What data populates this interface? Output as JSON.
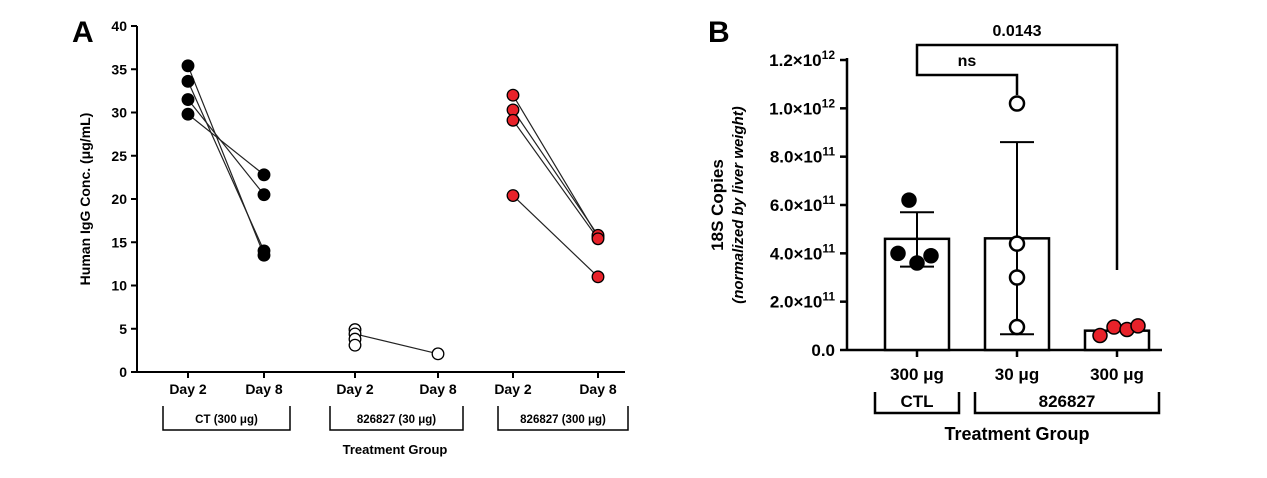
{
  "panel_a": {
    "letter": "A",
    "ylabel": "Human IgG Conc. (μg/mL)",
    "xlabel": "Treatment Group",
    "ylim": [
      0,
      40
    ],
    "yticks": [
      "0",
      "5",
      "10",
      "15",
      "20",
      "25",
      "30",
      "35",
      "40"
    ],
    "groups": [
      {
        "label": "CT (300 μg)",
        "days": [
          "Day 2",
          "Day 8"
        ],
        "marker": "filled",
        "color": "#000000",
        "pairs": [
          [
            35.4,
            13.5
          ],
          [
            33.6,
            14.0
          ],
          [
            31.5,
            20.5
          ],
          [
            29.8,
            22.8
          ]
        ]
      },
      {
        "label": "826827 (30 μg)",
        "days": [
          "Day 2",
          "Day 8"
        ],
        "marker": "open",
        "color": "#000000",
        "day2_points": [
          4.9,
          4.4,
          3.8,
          3.1
        ],
        "mean_line": [
          4.4,
          2.1
        ],
        "day8_points": [
          2.1
        ]
      },
      {
        "label": "826827 (300 μg)",
        "days": [
          "Day 2",
          "Day 8"
        ],
        "marker": "filled",
        "color": "#e8222a",
        "pairs": [
          [
            32.0,
            15.6
          ],
          [
            30.3,
            15.8
          ],
          [
            29.1,
            15.4
          ],
          [
            20.4,
            11.0
          ]
        ]
      }
    ]
  },
  "panel_b": {
    "letter": "B",
    "ylabel": "18S Copies",
    "ylabel_sub": "(normalized by liver weight)",
    "xlabel": "Treatment Group",
    "ylim": [
      0,
      1200000000000.0
    ],
    "yticks": [
      {
        "mant": "0.0",
        "exp": ""
      },
      {
        "mant": "2.0×10",
        "exp": "11"
      },
      {
        "mant": "4.0×10",
        "exp": "11"
      },
      {
        "mant": "6.0×10",
        "exp": "11"
      },
      {
        "mant": "8.0×10",
        "exp": "11"
      },
      {
        "mant": "1.0×10",
        "exp": "12"
      },
      {
        "mant": "1.2×10",
        "exp": "12"
      }
    ],
    "bars": [
      {
        "label": "300 μg",
        "mean": 460000000000.0,
        "sd_low": 345000000000.0,
        "sd_high": 570000000000.0,
        "marker": "filled",
        "color": "#000000",
        "points": [
          620000000000.0,
          400000000000.0,
          360000000000.0,
          390000000000.0
        ]
      },
      {
        "label": "30 μg",
        "mean": 462000000000.0,
        "sd_low": 65000000000.0,
        "sd_high": 860000000000.0,
        "marker": "open",
        "color": "#000000",
        "points": [
          1020000000000.0,
          440000000000.0,
          300000000000.0,
          95000000000.0
        ]
      },
      {
        "label": "300 μg",
        "mean": 80000000000.0,
        "sd_low": 80000000000.0,
        "sd_high": 80000000000.0,
        "marker": "filled",
        "color": "#e8222a",
        "points": [
          60000000000.0,
          95000000000.0,
          85000000000.0,
          100000000000.0
        ]
      }
    ],
    "brackets": [
      {
        "label": "CTL",
        "from": 0,
        "to": 0
      },
      {
        "label": "826827",
        "from": 1,
        "to": 2
      }
    ],
    "significance": [
      {
        "label": "ns",
        "from": 0,
        "to": 1
      },
      {
        "label": "0.0143",
        "from": 0,
        "to": 2
      }
    ]
  }
}
